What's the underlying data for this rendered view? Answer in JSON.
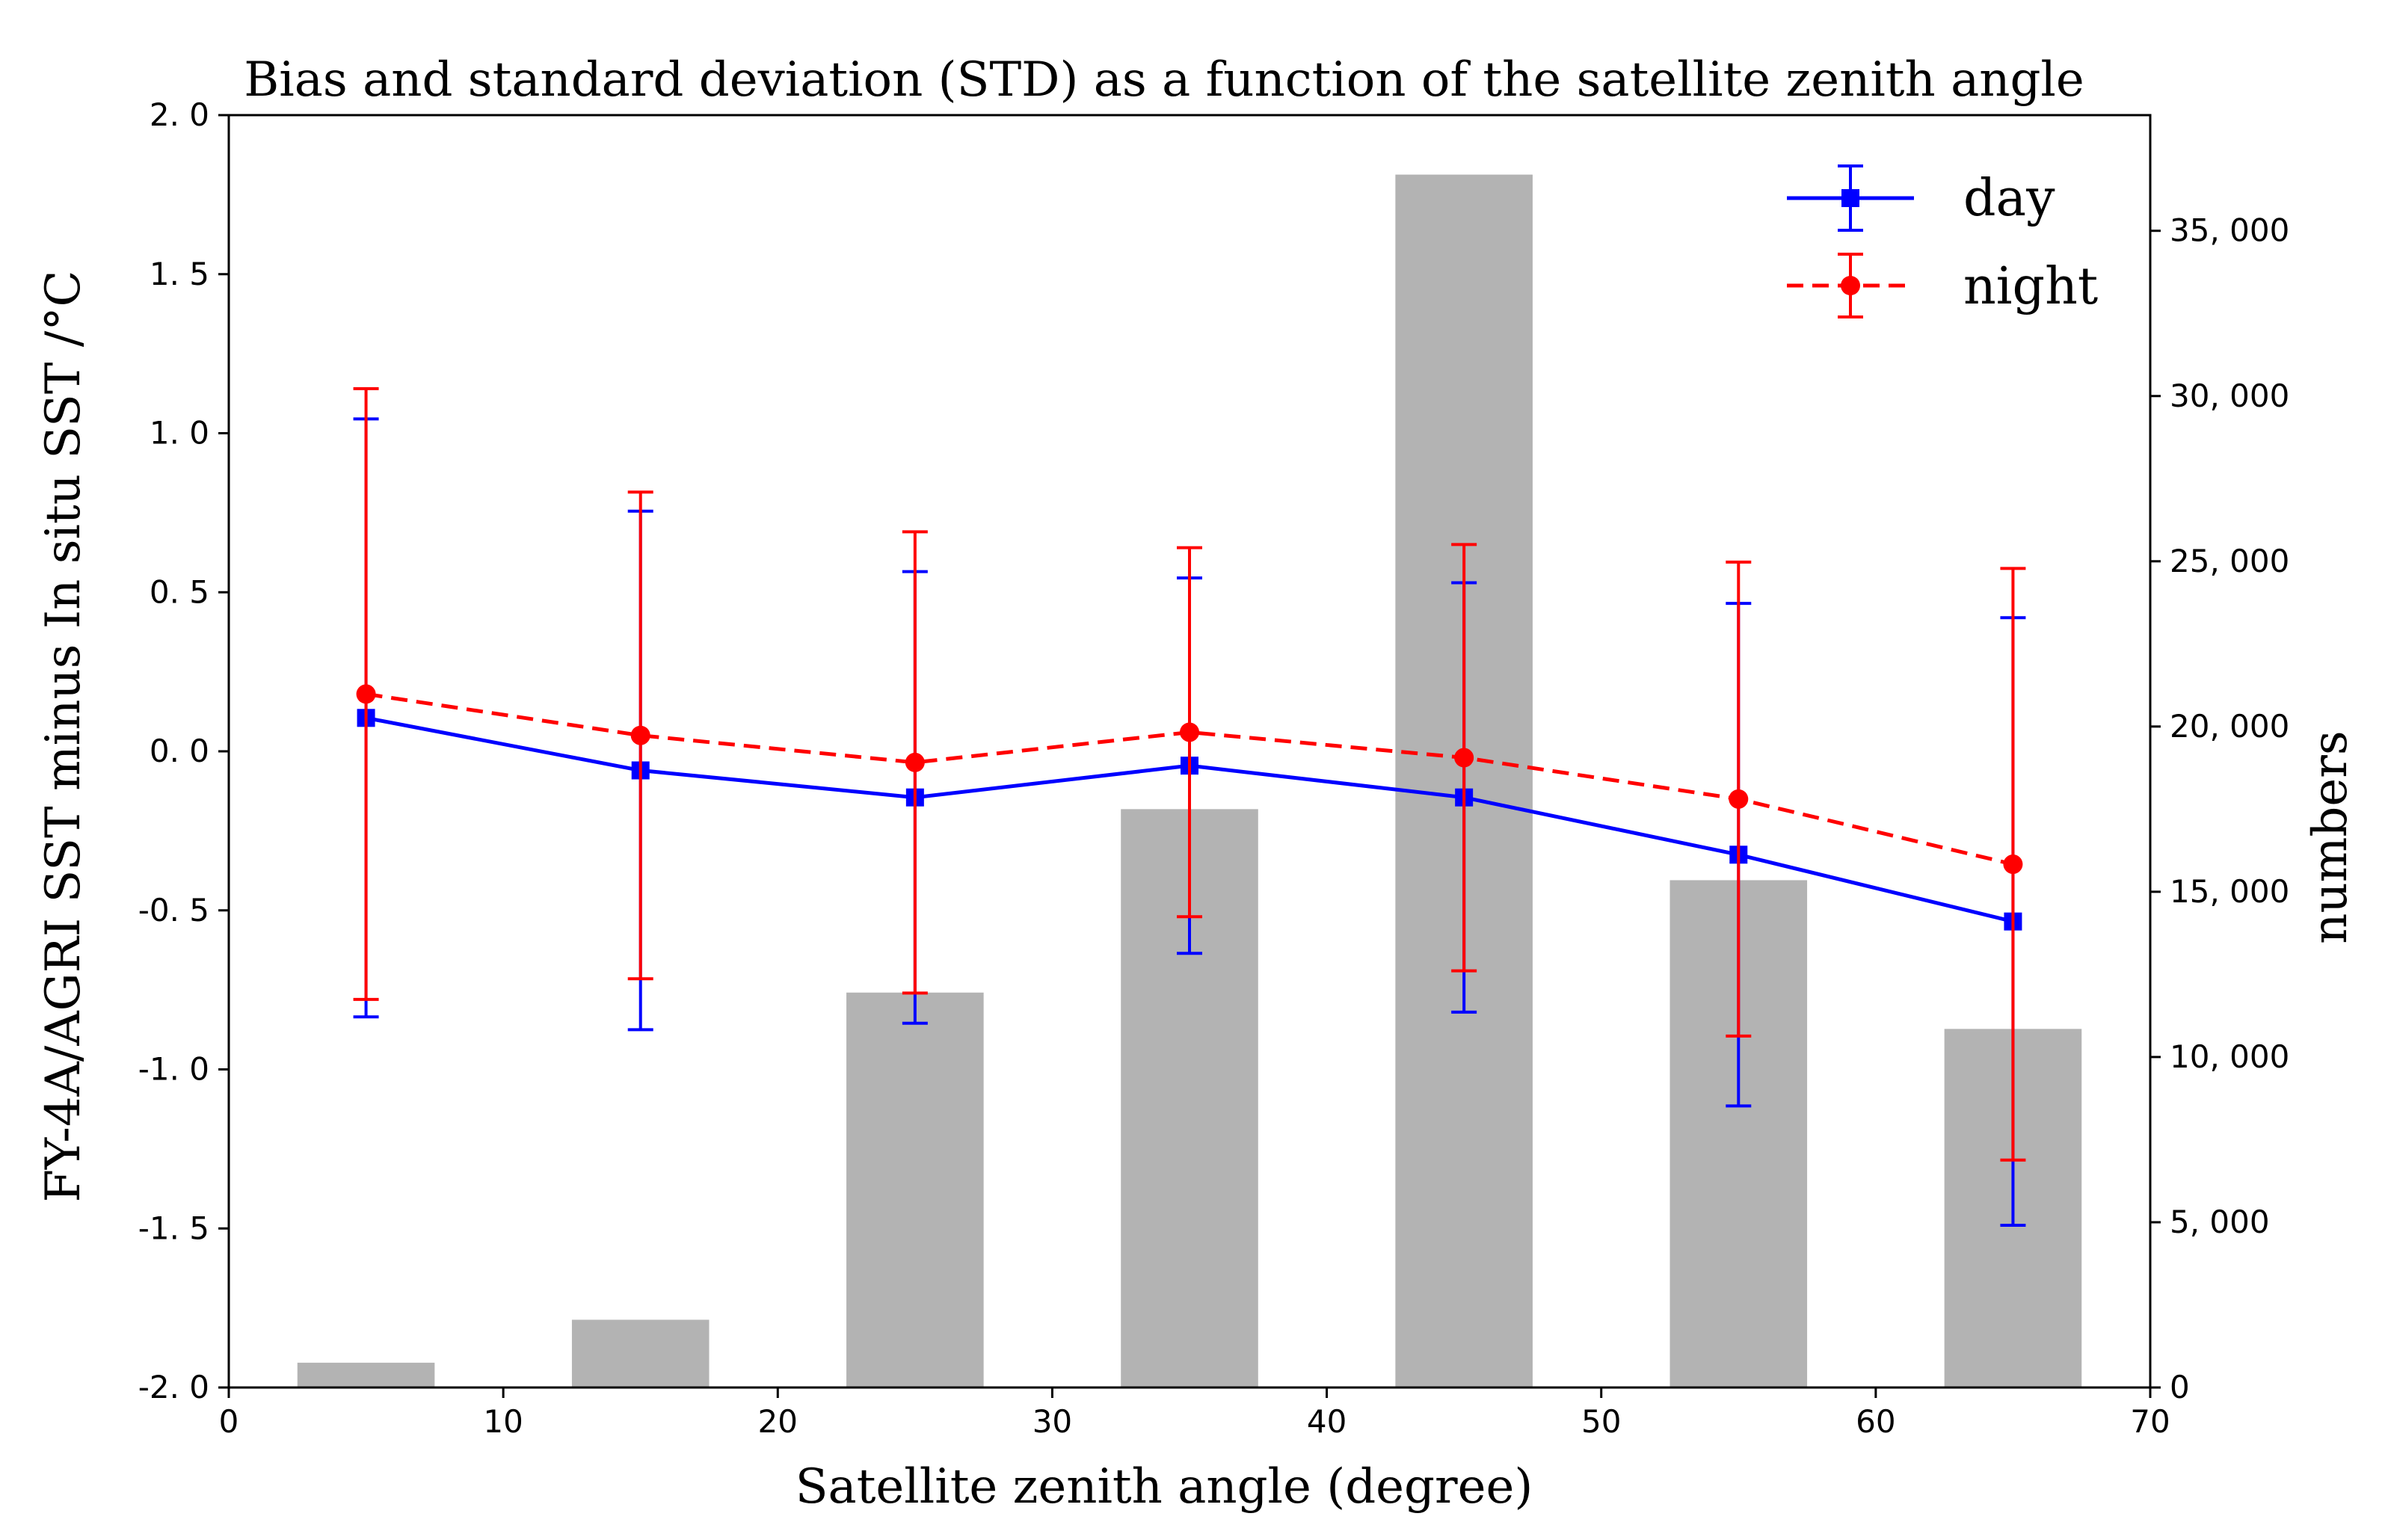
{
  "chart_data": {
    "type": "bar+line",
    "title": "Bias and standard deviation (STD) as a function of the satellite zenith angle",
    "xlabel": "Satellite zenith angle (degree)",
    "ylabel": "FY-4A/AGRI SST minus In situ SST /°C",
    "ylabel2": "numbers",
    "xlim": [
      0,
      70
    ],
    "ylim": [
      -2.0,
      2.0
    ],
    "y2lim": [
      0,
      38500
    ],
    "xticks": [
      "0",
      "10",
      "20",
      "30",
      "40",
      "50",
      "60",
      "70"
    ],
    "yticks": [
      "-2. 0",
      "-1. 5",
      "-1. 0",
      "-0. 5",
      "0. 0",
      "0. 5",
      "1. 0",
      "1. 5",
      "2. 0"
    ],
    "y2ticks": [
      "0",
      "5, 000",
      "10, 000",
      "15, 000",
      "20, 000",
      "25, 000",
      "30, 000",
      "35, 000"
    ],
    "x": [
      5,
      15,
      25,
      35,
      45,
      55,
      65
    ],
    "bars": {
      "name": "numbers",
      "width": 5,
      "values": [
        750,
        2050,
        11950,
        17500,
        36700,
        15350,
        10850
      ],
      "color": "#b3b3b3"
    },
    "series": [
      {
        "name": "day",
        "color": "#0000ff",
        "style": "solid",
        "marker": "square",
        "values": [
          0.105,
          -0.06,
          -0.145,
          -0.045,
          -0.145,
          -0.325,
          -0.535
        ],
        "std": [
          0.94,
          0.815,
          0.71,
          0.59,
          0.675,
          0.79,
          0.955
        ]
      },
      {
        "name": "night",
        "color": "#ff0000",
        "style": "dashed",
        "marker": "circle",
        "values": [
          0.18,
          0.05,
          -0.035,
          0.06,
          -0.02,
          -0.15,
          -0.355
        ],
        "std": [
          0.96,
          0.765,
          0.725,
          0.58,
          0.67,
          0.745,
          0.93
        ]
      }
    ],
    "legend_position": "top-right"
  }
}
